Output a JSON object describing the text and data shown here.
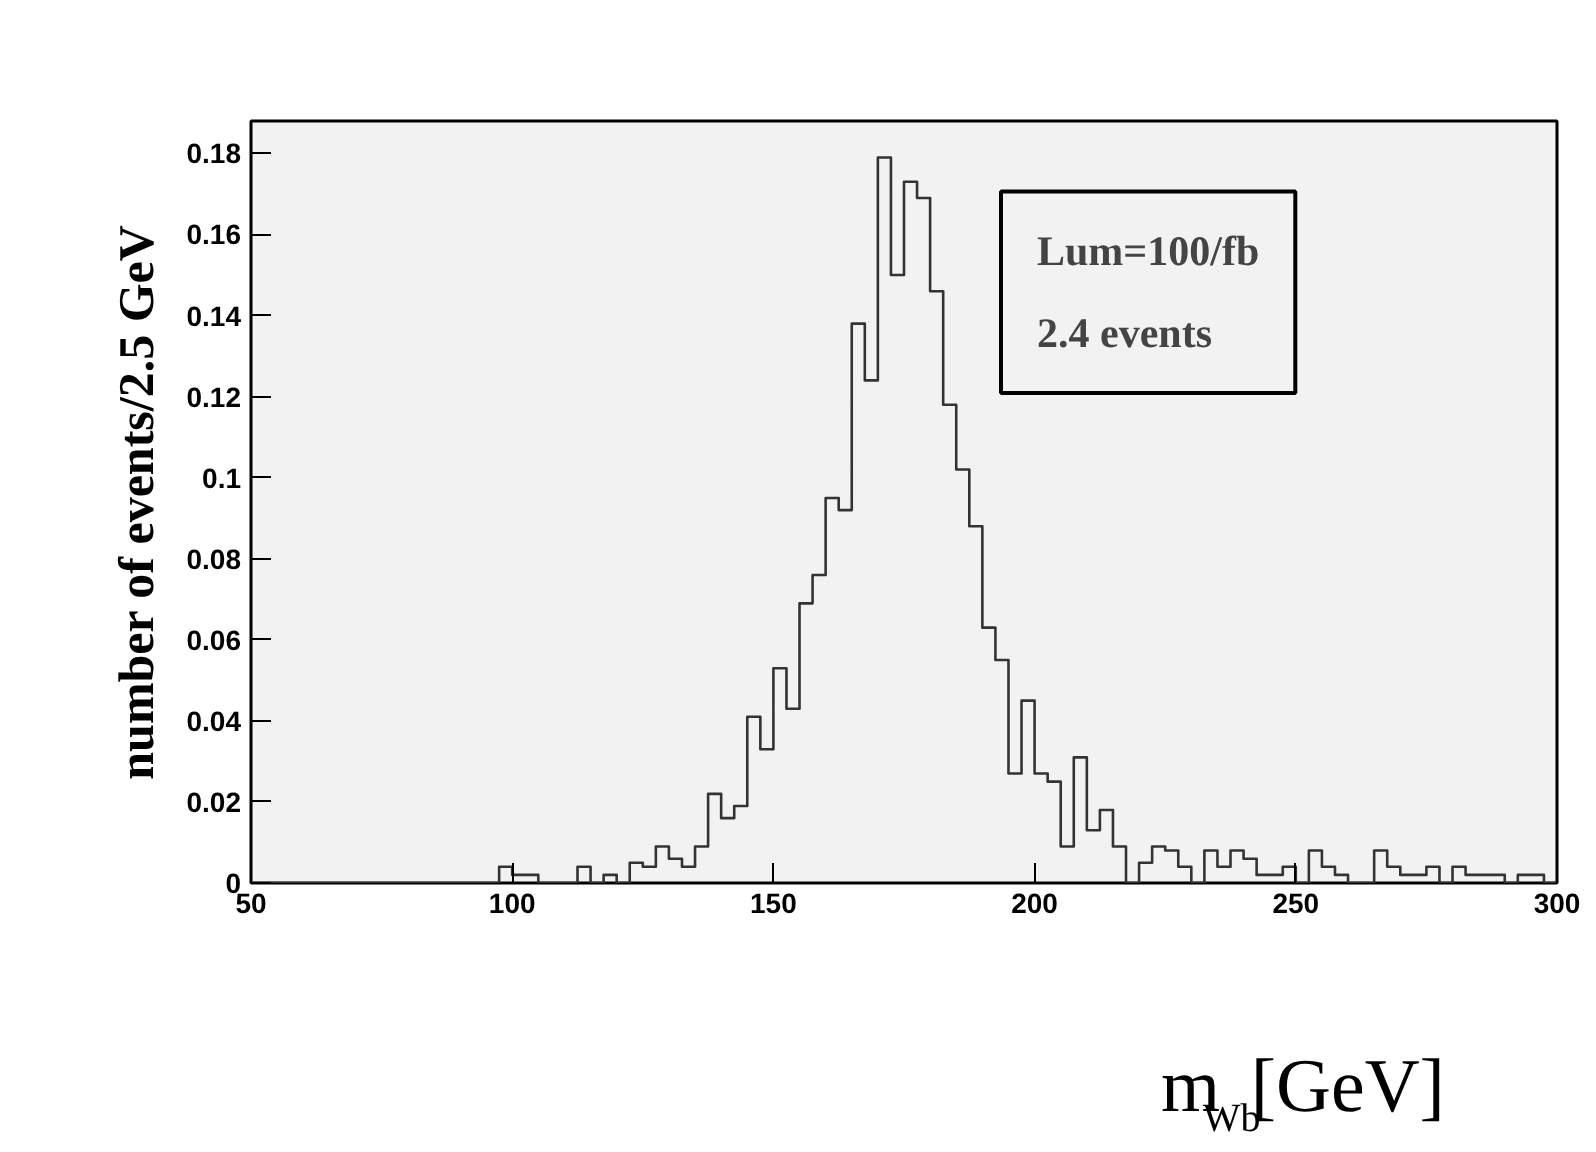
{
  "chart_data": {
    "type": "histogram",
    "xlabel": "m$_{Wb}$[GeV]",
    "ylabel": "number of events/2.5 GeV",
    "annotations": [
      "Lum=100/fb",
      "2.4 events"
    ],
    "bins": [
      50,
      52.5,
      55,
      57.5,
      60,
      62.5,
      65,
      67.5,
      70,
      72.5,
      75,
      77.5,
      80,
      82.5,
      85,
      87.5,
      90,
      92.5,
      95,
      97.5,
      100,
      102.5,
      105,
      107.5,
      110,
      112.5,
      115,
      117.5,
      120,
      122.5,
      125,
      127.5,
      130,
      132.5,
      135,
      137.5,
      140,
      142.5,
      145,
      147.5,
      150,
      152.5,
      155,
      157.5,
      160,
      162.5,
      165,
      167.5,
      170,
      172.5,
      175,
      177.5,
      180,
      182.5,
      185,
      187.5,
      190,
      192.5,
      195,
      197.5,
      200,
      202.5,
      205,
      207.5,
      210,
      212.5,
      215,
      217.5,
      220,
      222.5,
      225,
      227.5,
      230,
      232.5,
      235,
      237.5,
      240,
      242.5,
      245,
      247.5,
      250,
      252.5,
      255,
      257.5,
      260,
      262.5,
      265,
      267.5,
      270,
      272.5,
      275,
      277.5,
      280,
      282.5,
      285,
      287.5,
      290,
      292.5,
      295,
      297.5,
      300
    ],
    "values": [
      0,
      0,
      0,
      0,
      0,
      0,
      0,
      0,
      0,
      0,
      0,
      0,
      0,
      0,
      0,
      0,
      0,
      0,
      0,
      0.004,
      0.002,
      0.002,
      0,
      0,
      0,
      0.004,
      0,
      0.002,
      0,
      0.005,
      0.004,
      0.009,
      0.006,
      0.004,
      0.009,
      0.022,
      0.016,
      0.019,
      0.041,
      0.033,
      0.053,
      0.043,
      0.069,
      0.076,
      0.095,
      0.092,
      0.138,
      0.124,
      0.179,
      0.15,
      0.173,
      0.169,
      0.146,
      0.118,
      0.102,
      0.088,
      0.063,
      0.055,
      0.027,
      0.045,
      0.027,
      0.025,
      0.009,
      0.031,
      0.013,
      0.018,
      0.009,
      0,
      0.005,
      0.009,
      0.008,
      0.004,
      0,
      0.008,
      0.004,
      0.008,
      0.006,
      0.002,
      0.002,
      0.004,
      0,
      0.008,
      0.004,
      0.002,
      0,
      0,
      0.008,
      0.004,
      0.002,
      0.002,
      0.004,
      0,
      0.004,
      0.002,
      0.002,
      0.002,
      0,
      0.002,
      0.002,
      0
    ],
    "color": "#333333",
    "xlim": [
      50,
      300
    ],
    "ylim": [
      0,
      0.188
    ],
    "xticks": [
      50,
      100,
      150,
      200,
      250,
      300
    ],
    "yticks": [
      0,
      0.02,
      0.04,
      0.06,
      0.08,
      {
        "value": 0.1,
        "label": "0.1"
      },
      0.12,
      0.14,
      0.16,
      0.18
    ],
    "grid": false
  }
}
